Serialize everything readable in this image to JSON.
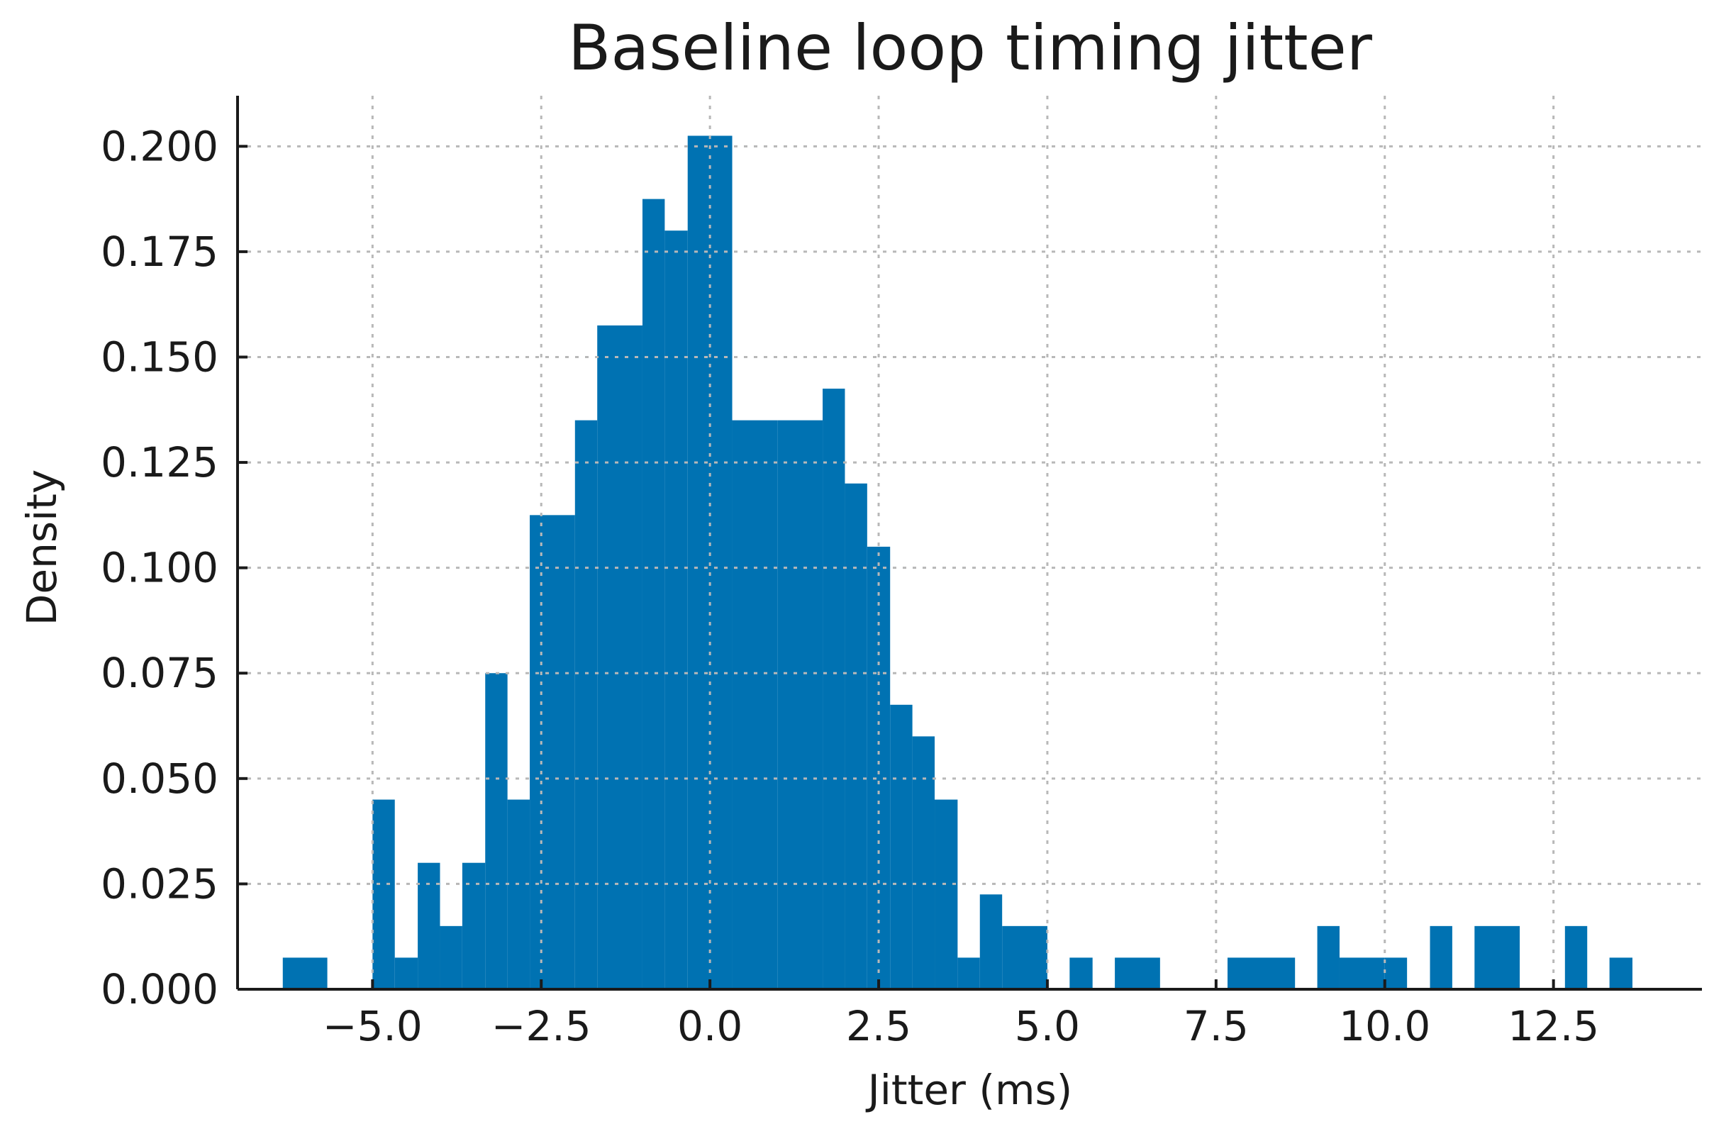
{
  "chart_data": {
    "type": "bar",
    "title": "Baseline loop timing jitter",
    "xlabel": "Jitter (ms)",
    "ylabel": "Density",
    "xlim": [
      -7.0,
      14.7
    ],
    "ylim": [
      0,
      0.212
    ],
    "grid": true,
    "bar_color": "#0072B2",
    "x_ticks": [
      {
        "value": -5.0,
        "label": "−5.0"
      },
      {
        "value": -2.5,
        "label": "−2.5"
      },
      {
        "value": 0.0,
        "label": "0.0"
      },
      {
        "value": 2.5,
        "label": "2.5"
      },
      {
        "value": 5.0,
        "label": "5.0"
      },
      {
        "value": 7.5,
        "label": "7.5"
      },
      {
        "value": 10.0,
        "label": "10.0"
      },
      {
        "value": 12.5,
        "label": "12.5"
      }
    ],
    "y_ticks": [
      {
        "value": 0.0,
        "label": "0.000"
      },
      {
        "value": 0.025,
        "label": "0.025"
      },
      {
        "value": 0.05,
        "label": "0.050"
      },
      {
        "value": 0.075,
        "label": "0.075"
      },
      {
        "value": 0.1,
        "label": "0.100"
      },
      {
        "value": 0.125,
        "label": "0.125"
      },
      {
        "value": 0.15,
        "label": "0.150"
      },
      {
        "value": 0.175,
        "label": "0.175"
      },
      {
        "value": 0.2,
        "label": "0.200"
      }
    ],
    "bins": [
      {
        "x0": -6.33,
        "x1": -5.67,
        "y": 0.0075
      },
      {
        "x0": -5.0,
        "x1": -4.67,
        "y": 0.045
      },
      {
        "x0": -4.67,
        "x1": -4.33,
        "y": 0.0075
      },
      {
        "x0": -4.33,
        "x1": -4.0,
        "y": 0.03
      },
      {
        "x0": -4.0,
        "x1": -3.67,
        "y": 0.015
      },
      {
        "x0": -3.67,
        "x1": -3.33,
        "y": 0.03
      },
      {
        "x0": -3.33,
        "x1": -3.0,
        "y": 0.075
      },
      {
        "x0": -3.0,
        "x1": -2.67,
        "y": 0.045
      },
      {
        "x0": -2.67,
        "x1": -2.0,
        "y": 0.1125
      },
      {
        "x0": -2.0,
        "x1": -1.67,
        "y": 0.135
      },
      {
        "x0": -1.67,
        "x1": -1.0,
        "y": 0.1575
      },
      {
        "x0": -1.0,
        "x1": -0.67,
        "y": 0.1875
      },
      {
        "x0": -0.67,
        "x1": -0.33,
        "y": 0.18
      },
      {
        "x0": -0.33,
        "x1": 0.33,
        "y": 0.2025
      },
      {
        "x0": 0.33,
        "x1": 1.0,
        "y": 0.135
      },
      {
        "x0": 1.0,
        "x1": 1.67,
        "y": 0.135
      },
      {
        "x0": 1.67,
        "x1": 2.0,
        "y": 0.1425
      },
      {
        "x0": 2.0,
        "x1": 2.33,
        "y": 0.12
      },
      {
        "x0": 2.33,
        "x1": 2.67,
        "y": 0.105
      },
      {
        "x0": 2.67,
        "x1": 3.0,
        "y": 0.0675
      },
      {
        "x0": 3.0,
        "x1": 3.33,
        "y": 0.06
      },
      {
        "x0": 3.33,
        "x1": 3.67,
        "y": 0.045
      },
      {
        "x0": 3.67,
        "x1": 4.0,
        "y": 0.0075
      },
      {
        "x0": 4.0,
        "x1": 4.33,
        "y": 0.0225
      },
      {
        "x0": 4.33,
        "x1": 5.0,
        "y": 0.015
      },
      {
        "x0": 5.33,
        "x1": 5.67,
        "y": 0.0075
      },
      {
        "x0": 6.0,
        "x1": 6.67,
        "y": 0.0075
      },
      {
        "x0": 7.67,
        "x1": 8.67,
        "y": 0.0075
      },
      {
        "x0": 9.0,
        "x1": 9.33,
        "y": 0.015
      },
      {
        "x0": 9.33,
        "x1": 10.0,
        "y": 0.0075
      },
      {
        "x0": 10.0,
        "x1": 10.33,
        "y": 0.0075
      },
      {
        "x0": 10.67,
        "x1": 11.0,
        "y": 0.015
      },
      {
        "x0": 11.33,
        "x1": 12.0,
        "y": 0.015
      },
      {
        "x0": 12.67,
        "x1": 13.0,
        "y": 0.015
      },
      {
        "x0": 13.33,
        "x1": 13.67,
        "y": 0.0075
      }
    ]
  }
}
